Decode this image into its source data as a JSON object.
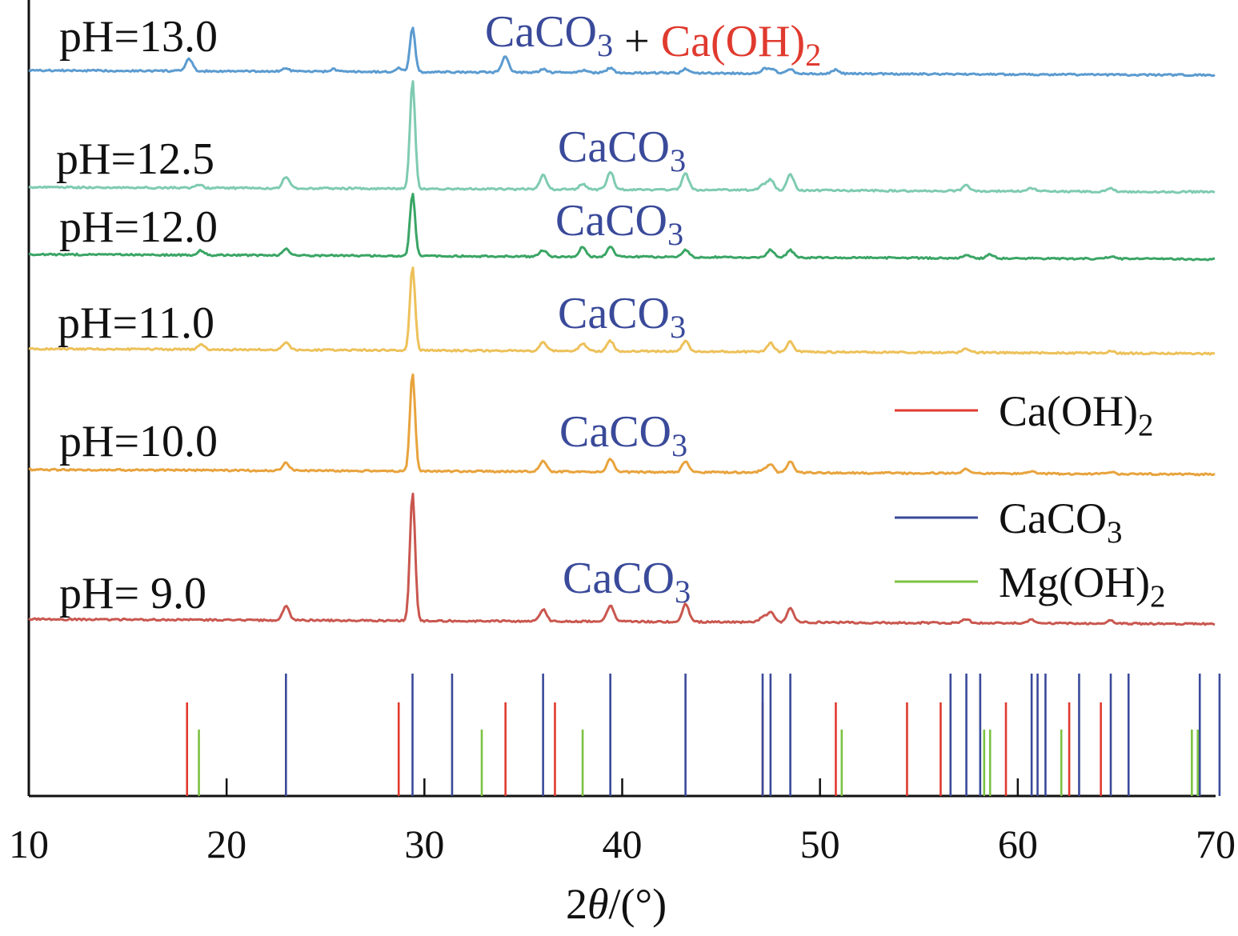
{
  "chart_data": {
    "type": "line",
    "subtype": "stacked XRD patterns with reference stick lines",
    "xlabel": {
      "prefix": "2",
      "theta": "θ",
      "unit": "/(°)"
    },
    "xlim": [
      10,
      70
    ],
    "x_ticks": [
      10,
      20,
      30,
      40,
      50,
      60,
      70
    ],
    "colors": {
      "CaCO3": "#3a4a9a",
      "Ca(OH)2": "#e03a2f",
      "Mg(OH)2": "#7cc242",
      "axis": "#111111"
    },
    "phases": {
      "CaCO3": {
        "main": "CaCO",
        "sub": "3"
      },
      "Ca(OH)2": {
        "main": "Ca(OH)",
        "sub": "2"
      },
      "Mg(OH)2": {
        "main": "Mg(OH)",
        "sub": "2"
      }
    },
    "series": [
      {
        "name": "pH=13.0",
        "color": "#5b9bd0",
        "phase_labels": [
          "CaCO3",
          "Ca(OH)2"
        ],
        "peaks": [
          {
            "x": 18.1,
            "h": 15
          },
          {
            "x": 23.0,
            "h": 4
          },
          {
            "x": 25.4,
            "h": 3
          },
          {
            "x": 28.7,
            "h": 5
          },
          {
            "x": 29.4,
            "h": 55
          },
          {
            "x": 34.1,
            "h": 20
          },
          {
            "x": 36.0,
            "h": 4
          },
          {
            "x": 38.0,
            "h": 3
          },
          {
            "x": 39.4,
            "h": 6
          },
          {
            "x": 43.2,
            "h": 5
          },
          {
            "x": 47.2,
            "h": 6
          },
          {
            "x": 47.6,
            "h": 5
          },
          {
            "x": 48.5,
            "h": 5
          },
          {
            "x": 50.8,
            "h": 5
          }
        ]
      },
      {
        "name": "pH=12.5",
        "color": "#7fcbb1",
        "phase_labels": [
          "CaCO3"
        ],
        "peaks": [
          {
            "x": 18.6,
            "h": 4
          },
          {
            "x": 23.0,
            "h": 14
          },
          {
            "x": 29.4,
            "h": 135
          },
          {
            "x": 36.0,
            "h": 18
          },
          {
            "x": 38.0,
            "h": 7
          },
          {
            "x": 39.4,
            "h": 22
          },
          {
            "x": 43.2,
            "h": 20
          },
          {
            "x": 47.1,
            "h": 6
          },
          {
            "x": 47.5,
            "h": 13
          },
          {
            "x": 48.5,
            "h": 20
          },
          {
            "x": 57.4,
            "h": 7
          },
          {
            "x": 60.7,
            "h": 4
          },
          {
            "x": 64.7,
            "h": 4
          }
        ]
      },
      {
        "name": "pH=12.0",
        "color": "#3aa565",
        "phase_labels": [
          "CaCO3"
        ],
        "peaks": [
          {
            "x": 18.7,
            "h": 6
          },
          {
            "x": 23.0,
            "h": 8
          },
          {
            "x": 29.4,
            "h": 78
          },
          {
            "x": 36.0,
            "h": 8
          },
          {
            "x": 38.0,
            "h": 12
          },
          {
            "x": 39.4,
            "h": 12
          },
          {
            "x": 43.2,
            "h": 9
          },
          {
            "x": 47.5,
            "h": 10
          },
          {
            "x": 48.5,
            "h": 9
          },
          {
            "x": 57.4,
            "h": 4
          },
          {
            "x": 58.6,
            "h": 5
          },
          {
            "x": 64.7,
            "h": 3
          }
        ]
      },
      {
        "name": "pH=11.0",
        "color": "#edc15a",
        "phase_labels": [
          "CaCO3"
        ],
        "peaks": [
          {
            "x": 18.7,
            "h": 6
          },
          {
            "x": 23.0,
            "h": 10
          },
          {
            "x": 29.4,
            "h": 105
          },
          {
            "x": 36.0,
            "h": 11
          },
          {
            "x": 38.0,
            "h": 10
          },
          {
            "x": 39.4,
            "h": 13
          },
          {
            "x": 43.2,
            "h": 13
          },
          {
            "x": 47.5,
            "h": 11
          },
          {
            "x": 48.5,
            "h": 13
          },
          {
            "x": 57.4,
            "h": 5
          },
          {
            "x": 64.7,
            "h": 3
          }
        ]
      },
      {
        "name": "pH=10.0",
        "color": "#e8a33d",
        "phase_labels": [
          "CaCO3"
        ],
        "peaks": [
          {
            "x": 23.0,
            "h": 10
          },
          {
            "x": 29.4,
            "h": 122
          },
          {
            "x": 36.0,
            "h": 14
          },
          {
            "x": 39.4,
            "h": 16
          },
          {
            "x": 43.2,
            "h": 14
          },
          {
            "x": 47.1,
            "h": 4
          },
          {
            "x": 47.5,
            "h": 10
          },
          {
            "x": 48.5,
            "h": 14
          },
          {
            "x": 57.4,
            "h": 6
          },
          {
            "x": 60.7,
            "h": 3
          },
          {
            "x": 64.7,
            "h": 3
          }
        ]
      },
      {
        "name": "pH= 9.0",
        "color": "#c9574f",
        "phase_labels": [
          "CaCO3"
        ],
        "peaks": [
          {
            "x": 23.0,
            "h": 17
          },
          {
            "x": 29.4,
            "h": 160
          },
          {
            "x": 36.0,
            "h": 15
          },
          {
            "x": 39.4,
            "h": 20
          },
          {
            "x": 43.2,
            "h": 22
          },
          {
            "x": 47.1,
            "h": 6
          },
          {
            "x": 47.5,
            "h": 13
          },
          {
            "x": 48.5,
            "h": 17
          },
          {
            "x": 57.4,
            "h": 5
          },
          {
            "x": 60.7,
            "h": 4
          },
          {
            "x": 64.7,
            "h": 4
          }
        ]
      }
    ],
    "reference_lines": {
      "CaCO3": [
        23.0,
        29.4,
        31.4,
        36.0,
        39.4,
        43.2,
        47.1,
        47.5,
        48.5,
        56.6,
        57.4,
        58.1,
        60.7,
        61.0,
        61.4,
        63.1,
        64.7,
        65.6,
        69.2,
        70.2
      ],
      "Ca(OH)2": [
        18.0,
        28.7,
        34.1,
        36.6,
        47.1,
        50.8,
        54.4,
        56.1,
        59.4,
        62.6,
        64.2
      ],
      "Mg(OH)2": [
        18.6,
        32.9,
        38.0,
        51.1,
        58.3,
        58.6,
        62.2,
        68.8,
        69.1
      ]
    },
    "legend": {
      "position": "right",
      "entries": [
        "Ca(OH)2",
        "CaCO3",
        "Mg(OH)2"
      ]
    },
    "grid": false
  }
}
